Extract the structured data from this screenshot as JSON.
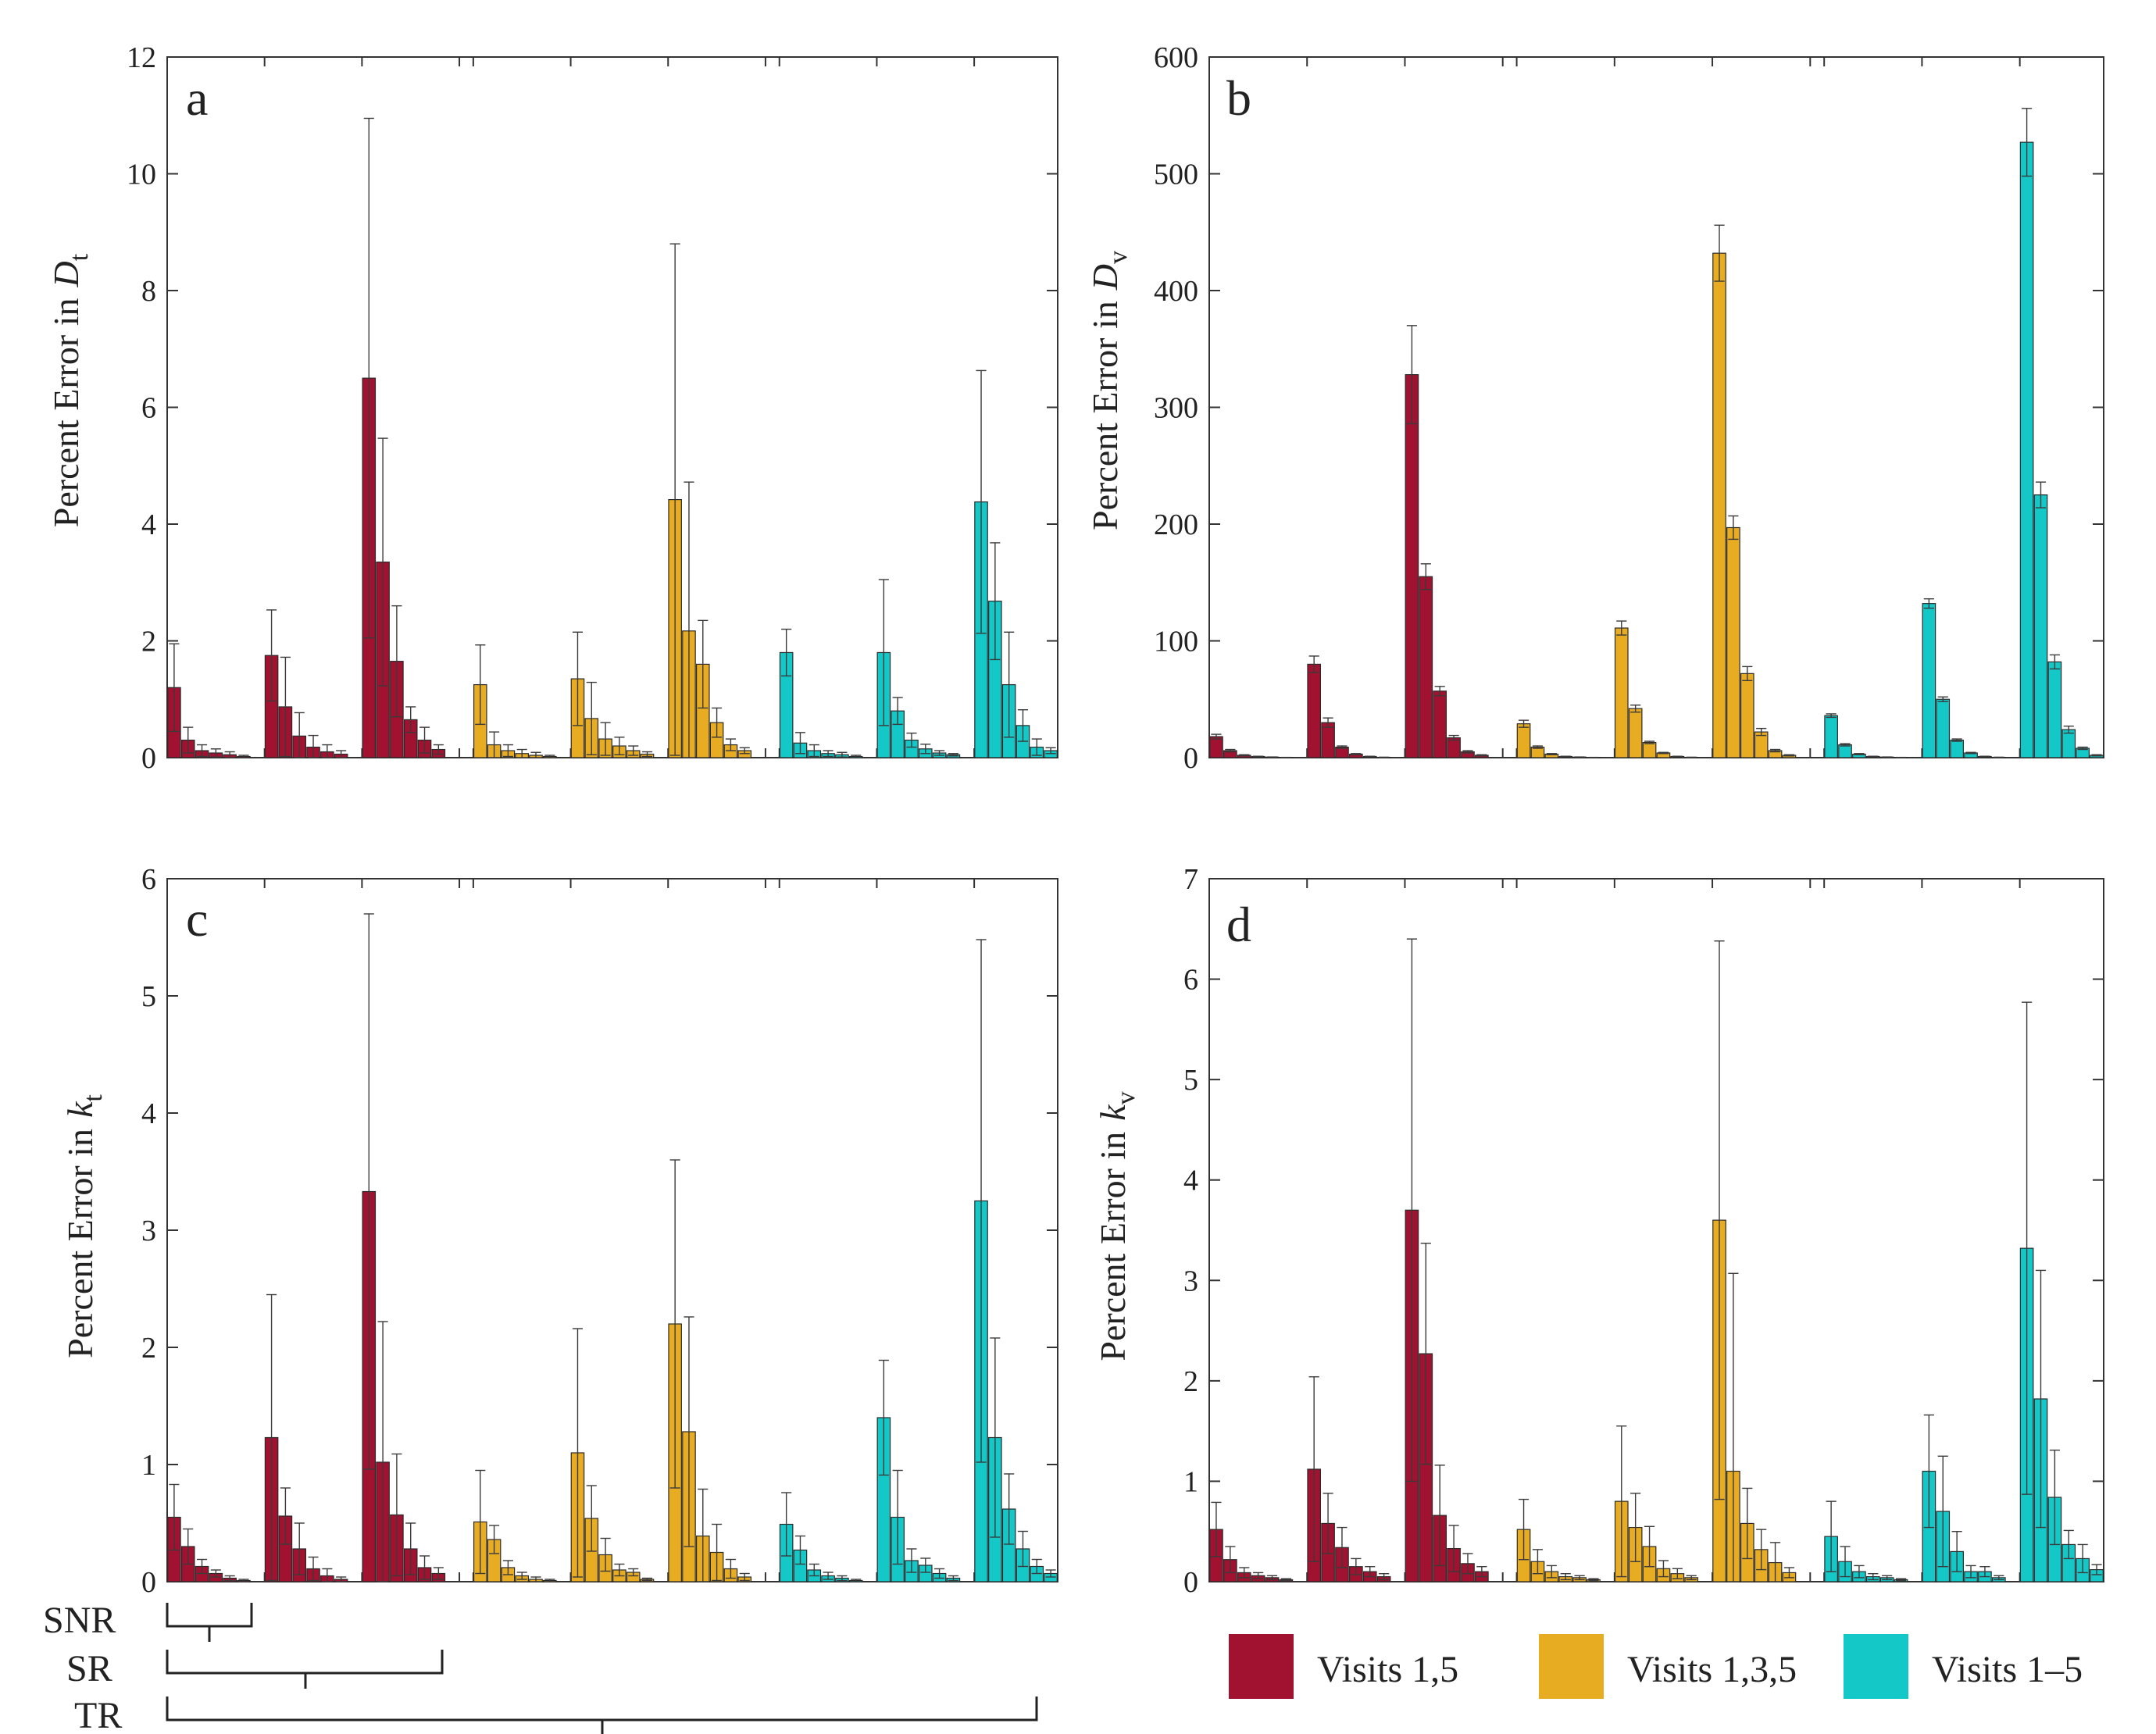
{
  "legend": [
    {
      "label": "Visits 1,5",
      "color": "#a01230"
    },
    {
      "label": "Visits 1,3,5",
      "color": "#e8ac23"
    },
    {
      "label": "Visits 1–5",
      "color": "#14c8c8"
    }
  ],
  "brackets": [
    {
      "label": "SNR",
      "span_bars": [
        0,
        6
      ]
    },
    {
      "label": "SR",
      "span_bars": [
        0,
        20
      ]
    },
    {
      "label": "TR",
      "span_bars": [
        0,
        63
      ]
    }
  ],
  "chart_data": [
    {
      "id": "a",
      "panel_label": "a",
      "type": "bar",
      "ylabel": {
        "main": "Percent Error in",
        "symbol": "D",
        "sub": "t"
      },
      "ylim": [
        0,
        12
      ],
      "yticks": [
        0,
        2,
        4,
        6,
        8,
        10,
        12
      ],
      "grid": false,
      "series": [
        {
          "name": "Visits 1,5",
          "color": "#a01230",
          "values": [
            [
              1.2,
              0.3,
              0.12,
              0.08,
              0.05,
              0.02
            ],
            [
              1.75,
              0.87,
              0.37,
              0.18,
              0.1,
              0.06
            ],
            [
              6.5,
              3.35,
              1.65,
              0.65,
              0.3,
              0.14
            ]
          ],
          "errors": [
            [
              0.75,
              0.22,
              0.1,
              0.07,
              0.05,
              0.02
            ],
            [
              0.78,
              0.85,
              0.4,
              0.2,
              0.12,
              0.06
            ],
            [
              4.45,
              2.12,
              0.95,
              0.22,
              0.22,
              0.08
            ]
          ]
        },
        {
          "name": "Visits 1,3,5",
          "color": "#e8ac23",
          "values": [
            [
              1.25,
              0.22,
              0.12,
              0.07,
              0.04,
              0.02
            ],
            [
              1.35,
              0.67,
              0.32,
              0.2,
              0.12,
              0.06
            ],
            [
              4.42,
              2.17,
              1.6,
              0.6,
              0.22,
              0.12
            ]
          ],
          "errors": [
            [
              0.68,
              0.22,
              0.1,
              0.07,
              0.05,
              0.02
            ],
            [
              0.8,
              0.62,
              0.28,
              0.15,
              0.08,
              0.04
            ],
            [
              4.38,
              2.55,
              0.75,
              0.25,
              0.1,
              0.05
            ]
          ]
        },
        {
          "name": "Visits 1–5",
          "color": "#14c8c8",
          "values": [
            [
              1.8,
              0.25,
              0.12,
              0.07,
              0.05,
              0.02
            ],
            [
              1.8,
              0.8,
              0.3,
              0.15,
              0.08,
              0.05
            ],
            [
              4.38,
              2.68,
              1.25,
              0.55,
              0.18,
              0.12
            ]
          ],
          "errors": [
            [
              0.4,
              0.18,
              0.1,
              0.05,
              0.04,
              0.02
            ],
            [
              1.25,
              0.23,
              0.12,
              0.08,
              0.04,
              0.02
            ],
            [
              2.25,
              1.0,
              0.9,
              0.27,
              0.14,
              0.05
            ]
          ]
        }
      ]
    },
    {
      "id": "b",
      "panel_label": "b",
      "type": "bar",
      "ylabel": {
        "main": "Percent Error in",
        "symbol": "D",
        "sub": "v"
      },
      "ylim": [
        0,
        600
      ],
      "yticks": [
        0,
        100,
        200,
        300,
        400,
        500,
        600
      ],
      "grid": false,
      "series": [
        {
          "name": "Visits 1,5",
          "color": "#a01230",
          "values": [
            [
              18,
              6,
              2,
              1,
              0.5,
              0.2
            ],
            [
              80,
              30,
              9,
              3,
              1,
              0.3
            ],
            [
              328,
              155,
              57,
              17,
              5,
              2
            ]
          ],
          "errors": [
            [
              2,
              1,
              0.5,
              0.2,
              0.1,
              0.05
            ],
            [
              7,
              4,
              1,
              0.5,
              0.2,
              0.1
            ],
            [
              42,
              11,
              4,
              2,
              1,
              0.5
            ]
          ]
        },
        {
          "name": "Visits 1,3,5",
          "color": "#e8ac23",
          "values": [
            [
              29,
              9,
              3,
              1,
              0.5,
              0.2
            ],
            [
              111,
              42,
              13,
              4,
              1,
              0.3
            ],
            [
              432,
              197,
              72,
              22,
              6,
              2
            ]
          ],
          "errors": [
            [
              3,
              1,
              0.5,
              0.2,
              0.1,
              0.05
            ],
            [
              6,
              3,
              1,
              0.5,
              0.2,
              0.1
            ],
            [
              24,
              10,
              6,
              3,
              1,
              0.5
            ]
          ]
        },
        {
          "name": "Visits 1–5",
          "color": "#14c8c8",
          "values": [
            [
              36,
              11,
              3,
              1,
              0.5,
              0.2
            ],
            [
              132,
              50,
              15,
              4,
              1,
              0.3
            ],
            [
              527,
              225,
              82,
              24,
              8,
              2
            ]
          ],
          "errors": [
            [
              1.5,
              1,
              0.5,
              0.2,
              0.1,
              0.05
            ],
            [
              4,
              2,
              1,
              0.5,
              0.2,
              0.1
            ],
            [
              29,
              11,
              6,
              3,
              1,
              0.5
            ]
          ]
        }
      ]
    },
    {
      "id": "c",
      "panel_label": "c",
      "type": "bar",
      "ylabel": {
        "main": "Percent Error in",
        "symbol": "k",
        "sub": "t"
      },
      "ylim": [
        0,
        6
      ],
      "yticks": [
        0,
        1,
        2,
        3,
        4,
        5,
        6
      ],
      "grid": false,
      "series": [
        {
          "name": "Visits 1,5",
          "color": "#a01230",
          "values": [
            [
              0.55,
              0.3,
              0.13,
              0.07,
              0.03,
              0.01
            ],
            [
              1.23,
              0.56,
              0.28,
              0.11,
              0.05,
              0.02
            ],
            [
              3.33,
              1.02,
              0.57,
              0.28,
              0.12,
              0.07
            ]
          ],
          "errors": [
            [
              0.28,
              0.15,
              0.06,
              0.03,
              0.02,
              0.01
            ],
            [
              1.22,
              0.24,
              0.22,
              0.1,
              0.06,
              0.02
            ],
            [
              2.37,
              1.2,
              0.52,
              0.22,
              0.1,
              0.05
            ]
          ]
        },
        {
          "name": "Visits 1,3,5",
          "color": "#e8ac23",
          "values": [
            [
              0.51,
              0.36,
              0.12,
              0.05,
              0.02,
              0.01
            ],
            [
              1.1,
              0.54,
              0.23,
              0.1,
              0.08,
              0.02
            ],
            [
              2.2,
              1.28,
              0.39,
              0.25,
              0.11,
              0.04
            ]
          ],
          "errors": [
            [
              0.44,
              0.12,
              0.06,
              0.03,
              0.02,
              0.01
            ],
            [
              1.06,
              0.28,
              0.14,
              0.05,
              0.03,
              0.01
            ],
            [
              1.4,
              0.98,
              0.4,
              0.24,
              0.08,
              0.03
            ]
          ]
        },
        {
          "name": "Visits 1–5",
          "color": "#14c8c8",
          "values": [
            [
              0.49,
              0.27,
              0.1,
              0.05,
              0.03,
              0.01
            ],
            [
              1.4,
              0.55,
              0.18,
              0.14,
              0.07,
              0.03
            ],
            [
              3.25,
              1.23,
              0.62,
              0.28,
              0.13,
              0.07
            ]
          ],
          "errors": [
            [
              0.27,
              0.12,
              0.05,
              0.03,
              0.02,
              0.01
            ],
            [
              0.49,
              0.4,
              0.1,
              0.06,
              0.04,
              0.02
            ],
            [
              2.23,
              0.85,
              0.3,
              0.15,
              0.06,
              0.03
            ]
          ]
        }
      ]
    },
    {
      "id": "d",
      "panel_label": "d",
      "type": "bar",
      "ylabel": {
        "main": "Percent Error in",
        "symbol": "k",
        "sub": "v"
      },
      "ylim": [
        0,
        7
      ],
      "yticks": [
        0,
        1,
        2,
        3,
        4,
        5,
        6,
        7
      ],
      "grid": false,
      "series": [
        {
          "name": "Visits 1,5",
          "color": "#a01230",
          "values": [
            [
              0.52,
              0.22,
              0.09,
              0.06,
              0.04,
              0.02
            ],
            [
              1.12,
              0.58,
              0.34,
              0.15,
              0.1,
              0.05
            ],
            [
              3.7,
              2.27,
              0.66,
              0.33,
              0.18,
              0.1
            ]
          ],
          "errors": [
            [
              0.27,
              0.13,
              0.05,
              0.03,
              0.02,
              0.01
            ],
            [
              0.92,
              0.3,
              0.2,
              0.08,
              0.05,
              0.03
            ],
            [
              2.7,
              1.1,
              0.5,
              0.23,
              0.1,
              0.05
            ]
          ]
        },
        {
          "name": "Visits 1,3,5",
          "color": "#e8ac23",
          "values": [
            [
              0.52,
              0.2,
              0.1,
              0.05,
              0.04,
              0.02
            ],
            [
              0.8,
              0.54,
              0.35,
              0.13,
              0.08,
              0.04
            ],
            [
              3.6,
              1.1,
              0.58,
              0.32,
              0.19,
              0.09
            ]
          ],
          "errors": [
            [
              0.3,
              0.12,
              0.06,
              0.03,
              0.02,
              0.01
            ],
            [
              0.75,
              0.34,
              0.2,
              0.08,
              0.05,
              0.02
            ],
            [
              2.78,
              1.97,
              0.35,
              0.2,
              0.2,
              0.05
            ]
          ]
        },
        {
          "name": "Visits 1–5",
          "color": "#14c8c8",
          "values": [
            [
              0.45,
              0.2,
              0.1,
              0.05,
              0.04,
              0.02
            ],
            [
              1.1,
              0.7,
              0.3,
              0.1,
              0.1,
              0.04
            ],
            [
              3.32,
              1.82,
              0.84,
              0.37,
              0.23,
              0.12
            ]
          ],
          "errors": [
            [
              0.35,
              0.15,
              0.06,
              0.03,
              0.02,
              0.01
            ],
            [
              0.56,
              0.55,
              0.2,
              0.06,
              0.05,
              0.02
            ],
            [
              2.45,
              1.28,
              0.47,
              0.14,
              0.14,
              0.05
            ]
          ]
        }
      ]
    }
  ]
}
